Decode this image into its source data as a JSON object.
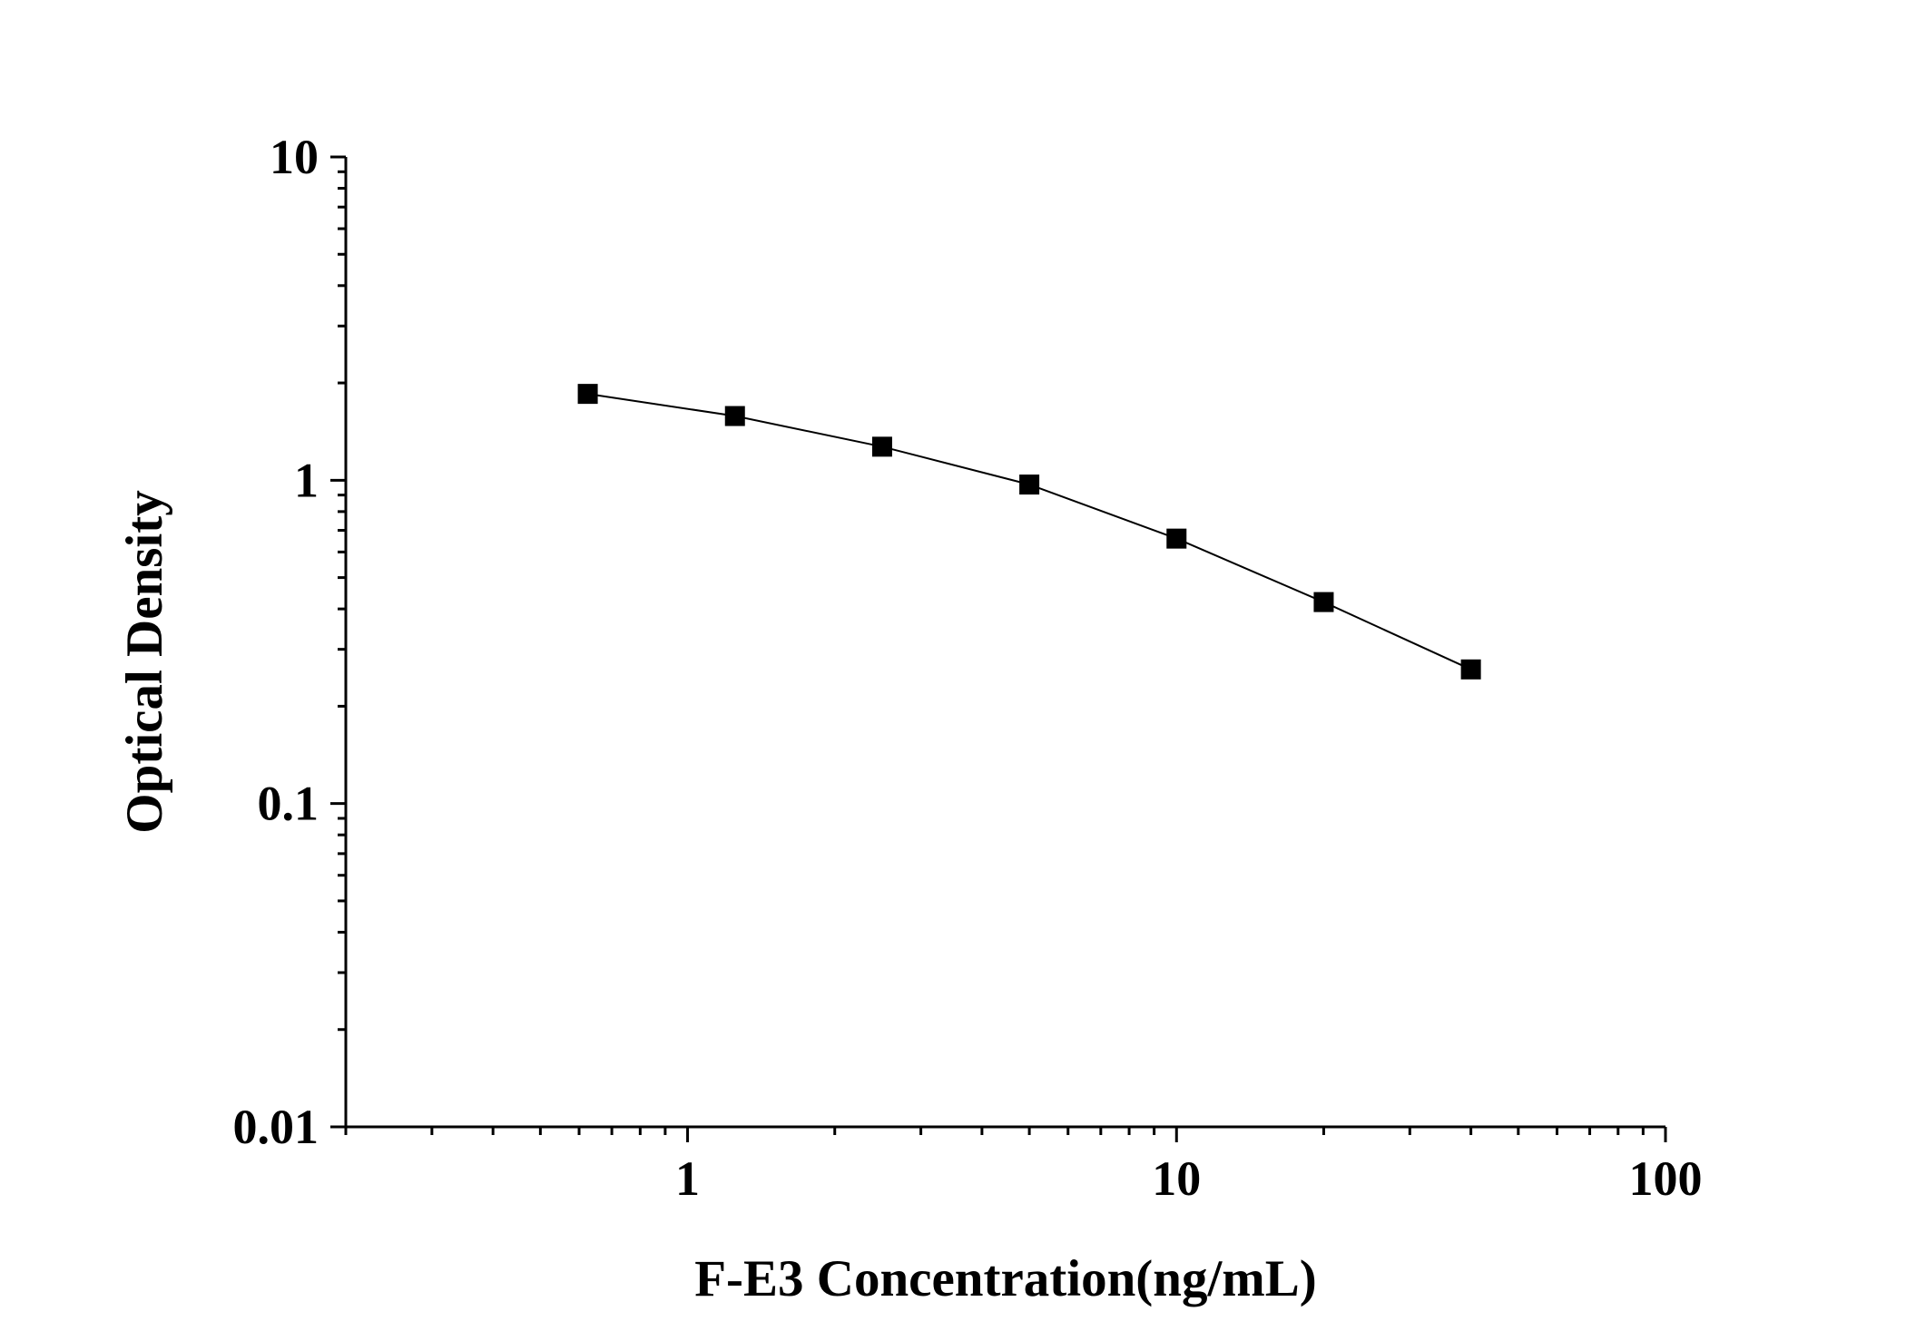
{
  "chart_data": {
    "type": "scatter",
    "x_scale": "log",
    "y_scale": "log",
    "xlabel": "F-E3 Concentration(ng/mL)",
    "ylabel": "Optical Density",
    "xlim": [
      0.2,
      100
    ],
    "ylim": [
      0.01,
      10
    ],
    "x_ticks": [
      {
        "value": 1,
        "label": "1"
      },
      {
        "value": 10,
        "label": "10"
      },
      {
        "value": 100,
        "label": "100"
      }
    ],
    "y_ticks": [
      {
        "value": 0.01,
        "label": "0.01"
      },
      {
        "value": 0.1,
        "label": "0.1"
      },
      {
        "value": 1,
        "label": "1"
      },
      {
        "value": 10,
        "label": "10"
      }
    ],
    "grid": false,
    "legend": "none",
    "series": [
      {
        "marker": "square",
        "line": "connected",
        "color": "#000000",
        "x": [
          0.625,
          1.25,
          2.5,
          5,
          10,
          20,
          40
        ],
        "y": [
          1.85,
          1.58,
          1.27,
          0.97,
          0.66,
          0.42,
          0.26
        ]
      }
    ]
  }
}
